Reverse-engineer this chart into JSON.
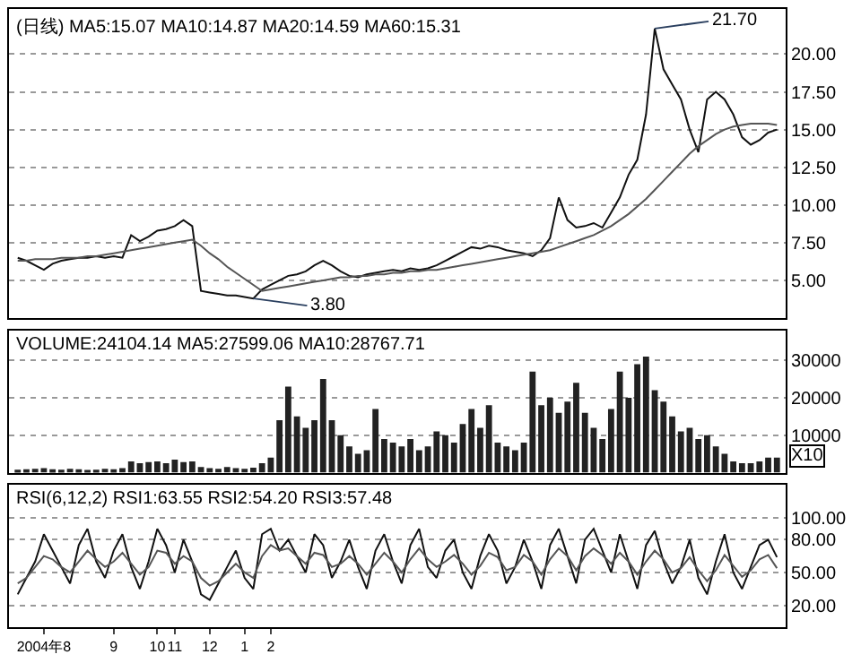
{
  "chart_data": [
    {
      "type": "line",
      "title": "(日线) MA5:15.07 MA10:14.87 MA20:14.59 MA60:15.31",
      "categories": [
        null,
        null,
        null,
        null,
        null,
        null,
        null,
        null,
        null,
        null,
        null,
        null,
        null,
        null,
        null,
        null,
        null,
        null,
        null,
        null,
        null,
        null,
        null,
        null,
        null,
        null,
        null,
        null,
        null,
        null,
        null,
        null,
        null,
        null,
        null,
        null,
        null,
        null,
        null,
        null,
        null,
        null,
        null,
        null,
        null,
        null,
        null,
        null,
        null,
        null,
        null,
        null,
        null,
        null,
        null,
        null,
        null,
        null,
        null,
        null,
        null,
        null,
        null,
        null,
        null,
        null,
        null,
        null,
        null,
        null,
        null,
        null,
        null,
        null,
        null,
        null,
        null,
        null,
        null,
        null,
        null,
        null,
        null,
        null,
        null,
        null,
        null,
        null
      ],
      "series": [
        {
          "color": "#111111",
          "values": [
            6.5,
            6.3,
            6.0,
            5.7,
            6.1,
            6.3,
            6.4,
            6.5,
            6.5,
            6.6,
            6.5,
            6.6,
            6.5,
            8.0,
            7.6,
            7.9,
            8.3,
            8.4,
            8.6,
            9.0,
            8.6,
            4.3,
            4.2,
            4.1,
            4.0,
            4.0,
            3.9,
            3.8,
            4.4,
            4.7,
            5.0,
            5.3,
            5.4,
            5.6,
            6.0,
            6.3,
            6.0,
            5.6,
            5.3,
            5.2,
            5.4,
            5.5,
            5.6,
            5.7,
            5.6,
            5.8,
            5.7,
            5.8,
            6.0,
            6.3,
            6.6,
            6.9,
            7.2,
            7.1,
            7.3,
            7.2,
            7.0,
            6.9,
            6.8,
            6.6,
            7.0,
            7.8,
            10.5,
            9.0,
            8.5,
            8.6,
            8.8,
            8.5,
            9.5,
            10.5,
            12.0,
            13.0,
            16.0,
            21.7,
            19.0,
            18.0,
            17.0,
            15.0,
            13.5,
            17.0,
            17.5,
            17.0,
            16.0,
            14.5,
            14.0,
            14.3,
            14.8,
            15.0
          ]
        },
        {
          "color": "#555555",
          "values": [
            6.3,
            6.3,
            6.4,
            6.4,
            6.4,
            6.5,
            6.5,
            6.5,
            6.6,
            6.6,
            6.7,
            6.8,
            6.9,
            7.0,
            7.1,
            7.2,
            7.3,
            7.4,
            7.5,
            7.6,
            7.7,
            7.3,
            6.8,
            6.4,
            5.9,
            5.5,
            5.1,
            4.7,
            4.3,
            4.4,
            4.5,
            4.6,
            4.7,
            4.8,
            4.9,
            5.0,
            5.1,
            5.2,
            5.2,
            5.3,
            5.3,
            5.4,
            5.4,
            5.5,
            5.5,
            5.6,
            5.6,
            5.7,
            5.7,
            5.8,
            5.9,
            6.0,
            6.1,
            6.2,
            6.3,
            6.4,
            6.5,
            6.6,
            6.7,
            6.8,
            6.9,
            7.0,
            7.2,
            7.4,
            7.6,
            7.8,
            8.0,
            8.3,
            8.6,
            9.0,
            9.4,
            9.9,
            10.4,
            11.0,
            11.6,
            12.2,
            12.8,
            13.4,
            13.9,
            14.3,
            14.7,
            15.0,
            15.2,
            15.3,
            15.4,
            15.4,
            15.4,
            15.3
          ]
        }
      ],
      "annotations": [
        "21.70",
        "3.80"
      ],
      "ylim": [
        2.5,
        23
      ],
      "yticks": [
        {
          "value": 5,
          "label": "5.00"
        },
        {
          "value": 7.5,
          "label": "7.50"
        },
        {
          "value": 10,
          "label": "10.00"
        },
        {
          "value": 12.5,
          "label": "12.50"
        },
        {
          "value": 15,
          "label": "15.00"
        },
        {
          "value": 17.5,
          "label": "17.50"
        },
        {
          "value": 20,
          "label": "20.00"
        }
      ],
      "grid": "y",
      "tick_labels": "y"
    },
    {
      "type": "bar",
      "title": "VOLUME:24104.14 MA5:27599.06 MA10:28767.71",
      "categories": [
        null,
        null,
        null,
        null,
        null,
        null,
        null,
        null,
        null,
        null,
        null,
        null,
        null,
        null,
        null,
        null,
        null,
        null,
        null,
        null,
        null,
        null,
        null,
        null,
        null,
        null,
        null,
        null,
        null,
        null,
        null,
        null,
        null,
        null,
        null,
        null,
        null,
        null,
        null,
        null,
        null,
        null,
        null,
        null,
        null,
        null,
        null,
        null,
        null,
        null,
        null,
        null,
        null,
        null,
        null,
        null,
        null,
        null,
        null,
        null,
        null,
        null,
        null,
        null,
        null,
        null,
        null,
        null,
        null,
        null,
        null,
        null,
        null,
        null,
        null,
        null,
        null,
        null,
        null,
        null,
        null,
        null,
        null,
        null,
        null,
        null,
        null,
        null
      ],
      "series": [
        {
          "color": "#222222",
          "values": [
            800,
            900,
            1000,
            1200,
            900,
            800,
            1000,
            900,
            700,
            800,
            1000,
            900,
            1200,
            3000,
            2500,
            2800,
            3000,
            2500,
            3500,
            2800,
            3000,
            1500,
            1200,
            1000,
            1500,
            1200,
            1000,
            1300,
            2500,
            4000,
            14000,
            23000,
            15000,
            12000,
            14000,
            25000,
            14000,
            10000,
            7000,
            5000,
            6000,
            17000,
            9000,
            8000,
            7000,
            9000,
            6000,
            7000,
            11000,
            10000,
            8000,
            13000,
            17000,
            12000,
            18000,
            8000,
            7000,
            6000,
            8000,
            27000,
            18000,
            20000,
            16000,
            19000,
            24000,
            16000,
            12000,
            9000,
            17000,
            27000,
            20000,
            29000,
            31000,
            22000,
            19000,
            15000,
            11000,
            12000,
            9000,
            10000,
            7000,
            5000,
            3000,
            2500,
            2500,
            3000,
            4000,
            4000
          ]
        }
      ],
      "annotations": [
        "X10"
      ],
      "ylim": [
        0,
        38000
      ],
      "yticks": [
        10000,
        20000,
        30000
      ],
      "grid": "y",
      "tick_labels": "y"
    },
    {
      "type": "line",
      "title": "RSI(6,12,2) RSI1:63.55 RSI2:54.20 RSI3:57.48",
      "categories": [
        null,
        null,
        null,
        "2004年8",
        null,
        null,
        null,
        null,
        null,
        null,
        null,
        "9",
        null,
        null,
        null,
        null,
        "10",
        null,
        "11",
        null,
        null,
        null,
        "12",
        null,
        null,
        null,
        "1",
        null,
        null,
        "2",
        null,
        null,
        null,
        null,
        null,
        null,
        null,
        null,
        null,
        null,
        null,
        null,
        null,
        null,
        null,
        null,
        null,
        null,
        null,
        null,
        null,
        null,
        null,
        null,
        null,
        null,
        null,
        null,
        null,
        null,
        null,
        null,
        null,
        null,
        null,
        null,
        null,
        null,
        null,
        null,
        null,
        null,
        null,
        null,
        null,
        null,
        null,
        null,
        null,
        null,
        null,
        null,
        null,
        null,
        null,
        null,
        null,
        null
      ],
      "series": [
        {
          "color": "#111111",
          "values": [
            30,
            45,
            60,
            85,
            70,
            55,
            40,
            75,
            90,
            60,
            45,
            70,
            85,
            55,
            35,
            60,
            90,
            75,
            50,
            80,
            60,
            30,
            25,
            40,
            55,
            70,
            45,
            35,
            85,
            90,
            70,
            80,
            65,
            50,
            85,
            75,
            45,
            60,
            80,
            55,
            35,
            70,
            85,
            60,
            40,
            75,
            90,
            55,
            45,
            70,
            80,
            50,
            35,
            65,
            85,
            70,
            40,
            55,
            80,
            60,
            35,
            75,
            90,
            65,
            40,
            80,
            90,
            70,
            50,
            85,
            60,
            35,
            75,
            88,
            60,
            40,
            55,
            80,
            45,
            30,
            60,
            85,
            50,
            35,
            55,
            75,
            80,
            64
          ]
        },
        {
          "color": "#555555",
          "values": [
            40,
            45,
            55,
            65,
            62,
            55,
            50,
            60,
            70,
            62,
            55,
            60,
            68,
            58,
            48,
            55,
            70,
            68,
            58,
            65,
            60,
            45,
            38,
            42,
            50,
            58,
            50,
            45,
            65,
            75,
            70,
            72,
            65,
            58,
            68,
            66,
            55,
            58,
            65,
            58,
            48,
            58,
            68,
            60,
            50,
            62,
            72,
            62,
            55,
            60,
            66,
            58,
            48,
            56,
            68,
            64,
            52,
            55,
            66,
            60,
            48,
            62,
            72,
            65,
            52,
            65,
            72,
            66,
            58,
            68,
            60,
            48,
            60,
            70,
            62,
            50,
            54,
            64,
            52,
            42,
            52,
            66,
            56,
            46,
            52,
            62,
            66,
            54
          ]
        }
      ],
      "ylim": [
        0,
        130
      ],
      "yticks": [
        {
          "value": 20,
          "label": "20.00"
        },
        {
          "value": 50,
          "label": "50.00"
        },
        {
          "value": 80,
          "label": "80.00"
        },
        {
          "value": 100,
          "label": "100.00"
        }
      ],
      "grid": "y"
    }
  ]
}
